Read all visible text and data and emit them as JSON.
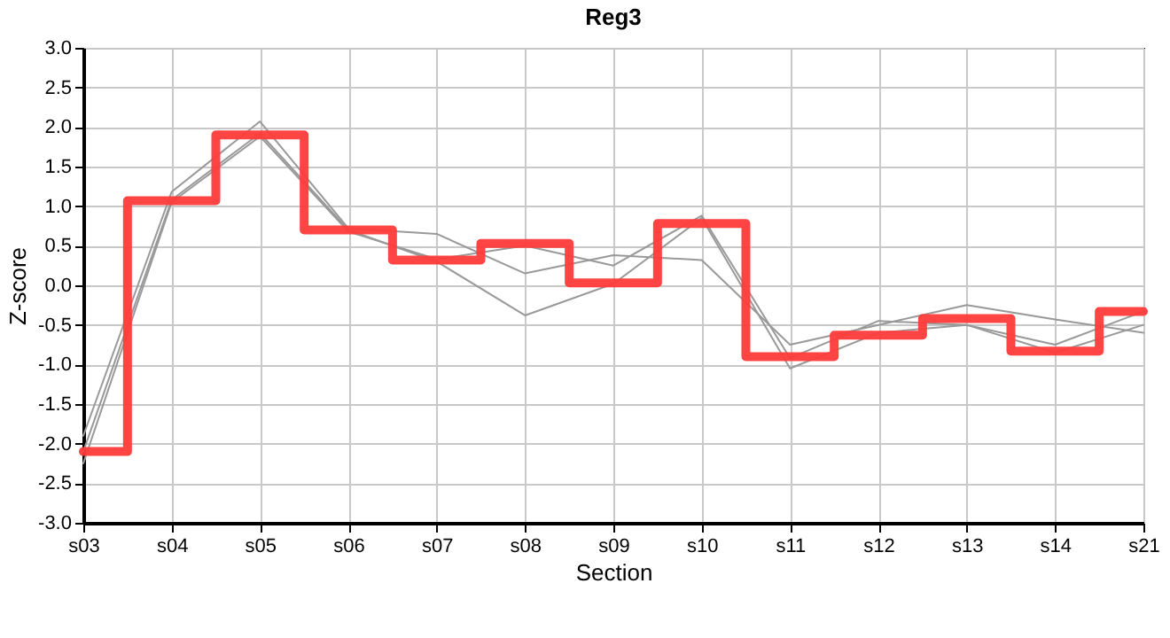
{
  "chart_data": {
    "type": "line",
    "title": "Reg3",
    "xlabel": "Section",
    "ylabel": "Z-score",
    "categories": [
      "s03",
      "s04",
      "s05",
      "s06",
      "s07",
      "s08",
      "s09",
      "s10",
      "s11",
      "s12",
      "s13",
      "s14",
      "s21"
    ],
    "series": [
      {
        "type": "line",
        "color": "#999999",
        "values": [
          -1.9,
          1.18,
          2.07,
          0.72,
          0.65,
          0.15,
          0.38,
          0.32,
          -0.75,
          -0.5,
          -0.25,
          -0.43,
          -0.6
        ]
      },
      {
        "type": "line",
        "color": "#999999",
        "values": [
          -2.1,
          1.08,
          1.92,
          0.7,
          0.3,
          -0.38,
          0.02,
          0.85,
          -1.05,
          -0.6,
          -0.5,
          -0.85,
          -0.5
        ]
      },
      {
        "type": "line",
        "color": "#999999",
        "values": [
          -2.25,
          1.05,
          1.88,
          0.68,
          0.33,
          0.5,
          0.25,
          0.88,
          -0.92,
          -0.45,
          -0.5,
          -0.75,
          -0.33
        ]
      },
      {
        "type": "step",
        "color": "#ff3a3a",
        "values": [
          -2.1,
          1.07,
          1.9,
          0.7,
          0.32,
          0.53,
          0.03,
          0.78,
          -0.9,
          -0.63,
          -0.42,
          -0.83,
          -0.33
        ]
      }
    ],
    "ylim": [
      -3,
      3
    ],
    "yticks": [
      {
        "value": -3,
        "label": "-3.0"
      },
      {
        "value": -2.5,
        "label": "-2.5"
      },
      {
        "value": -2,
        "label": "-2.0"
      },
      {
        "value": -1.5,
        "label": "-1.5"
      },
      {
        "value": -1,
        "label": "-1.0"
      },
      {
        "value": -0.5,
        "label": "-0.5"
      },
      {
        "value": 0,
        "label": "0.0"
      },
      {
        "value": 0.5,
        "label": "0.5"
      },
      {
        "value": 1,
        "label": "1.0"
      },
      {
        "value": 1.5,
        "label": "1.5"
      },
      {
        "value": 2,
        "label": "2.0"
      },
      {
        "value": 2.5,
        "label": "2.5"
      },
      {
        "value": 3,
        "label": "3.0"
      }
    ],
    "grid": true,
    "legend": false,
    "marker": "none",
    "line_style": "solid"
  }
}
